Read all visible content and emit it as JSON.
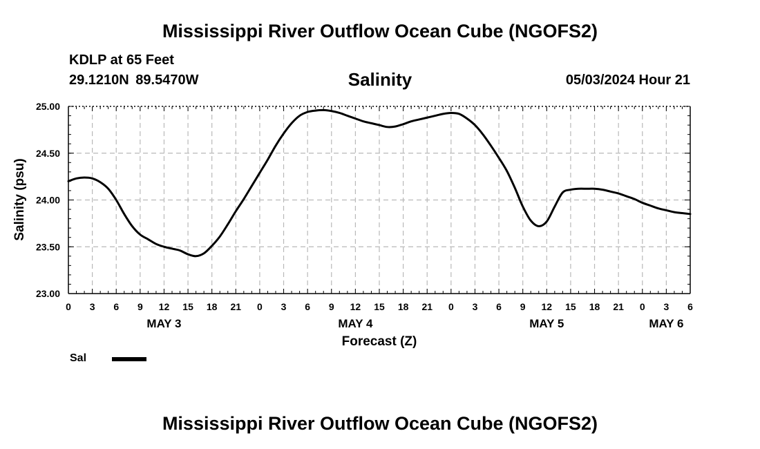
{
  "header": {
    "title": "Mississippi River Outflow Ocean Cube (NGOFS2)",
    "station": "KDLP at 65 Feet",
    "location": "29.1210N  89.5470W",
    "variable": "Salinity",
    "datetime": "05/03/2024 Hour 21"
  },
  "legend": {
    "label": "Sal"
  },
  "footer": {
    "title": "Mississippi River Outflow Ocean Cube (NGOFS2)"
  },
  "chart_data": {
    "type": "line",
    "title": "Salinity",
    "xlabel": "Forecast (Z)",
    "ylabel": "Salinity (psu)",
    "ylim": [
      23.0,
      25.0
    ],
    "xlim": [
      0,
      78
    ],
    "grid": true,
    "x_units": "hours since May 3 00Z",
    "y_ticks": [
      23.0,
      23.5,
      24.0,
      24.5,
      25.0
    ],
    "y_tick_labels": [
      "23.00",
      "23.50",
      "24.00",
      "24.50",
      "25.00"
    ],
    "x_ticks": [
      0,
      3,
      6,
      9,
      12,
      15,
      18,
      21,
      24,
      27,
      30,
      33,
      36,
      39,
      42,
      45,
      48,
      51,
      54,
      57,
      60,
      63,
      66,
      69,
      72,
      75,
      78
    ],
    "x_tick_labels": [
      "0",
      "3",
      "6",
      "9",
      "12",
      "15",
      "18",
      "21",
      "0",
      "3",
      "6",
      "9",
      "12",
      "15",
      "18",
      "21",
      "0",
      "3",
      "6",
      "9",
      "12",
      "15",
      "18",
      "21",
      "0",
      "3",
      "6"
    ],
    "day_labels": [
      {
        "label": "MAY 3",
        "x": 12
      },
      {
        "label": "MAY 4",
        "x": 36
      },
      {
        "label": "MAY 5",
        "x": 60
      },
      {
        "label": "MAY 6",
        "x": 75
      }
    ],
    "series": [
      {
        "name": "Sal",
        "x": [
          0,
          1,
          2,
          3,
          4,
          5,
          6,
          7,
          8,
          9,
          10,
          11,
          12,
          13,
          14,
          15,
          16,
          17,
          18,
          19,
          20,
          21,
          22,
          23,
          24,
          25,
          26,
          27,
          28,
          29,
          30,
          31,
          32,
          33,
          34,
          35,
          36,
          37,
          38,
          39,
          40,
          41,
          42,
          43,
          44,
          45,
          46,
          47,
          48,
          49,
          50,
          51,
          52,
          53,
          54,
          55,
          56,
          57,
          58,
          59,
          60,
          61,
          62,
          63,
          64,
          65,
          66,
          67,
          68,
          69,
          70,
          71,
          72,
          73,
          74,
          75,
          76,
          77,
          78
        ],
        "values": [
          24.2,
          24.23,
          24.24,
          24.23,
          24.19,
          24.12,
          24.0,
          23.85,
          23.72,
          23.63,
          23.58,
          23.53,
          23.5,
          23.48,
          23.46,
          23.42,
          23.4,
          23.43,
          23.51,
          23.61,
          23.74,
          23.88,
          24.01,
          24.15,
          24.29,
          24.43,
          24.58,
          24.71,
          24.82,
          24.9,
          24.94,
          24.955,
          24.96,
          24.95,
          24.93,
          24.9,
          24.87,
          24.84,
          24.82,
          24.8,
          24.78,
          24.785,
          24.81,
          24.84,
          24.86,
          24.88,
          24.9,
          24.92,
          24.93,
          24.92,
          24.87,
          24.8,
          24.7,
          24.58,
          24.45,
          24.31,
          24.13,
          23.93,
          23.78,
          23.72,
          23.77,
          23.93,
          24.08,
          24.11,
          24.12,
          24.12,
          24.12,
          24.11,
          24.09,
          24.07,
          24.04,
          24.01,
          23.97,
          23.94,
          23.91,
          23.89,
          23.87,
          23.86,
          23.85
        ]
      }
    ]
  }
}
